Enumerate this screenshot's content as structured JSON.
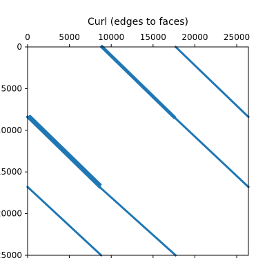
{
  "chart_data": {
    "type": "scatter",
    "title": "Curl (edges to faces)",
    "xlabel": "",
    "ylabel": "",
    "xlim": [
      0,
      26400
    ],
    "ylim": [
      25000,
      0
    ],
    "x_ticks": [
      0,
      5000,
      10000,
      15000,
      20000,
      25000
    ],
    "x_tick_labels": [
      "0",
      "5000",
      "10000",
      "15000",
      "20000",
      "25000"
    ],
    "y_ticks": [
      0,
      5000,
      10000,
      15000,
      20000,
      25000
    ],
    "y_tick_labels": [
      "0",
      "5000",
      "10000",
      "15000",
      "20000",
      "25000"
    ],
    "x_axis_position": "top",
    "grid": false,
    "marker_color": "#1f77b4",
    "series": [
      {
        "x": [
          8900,
          17500
        ],
        "y": [
          0,
          8400
        ],
        "width": 5
      },
      {
        "x": [
          17700,
          26400
        ],
        "y": [
          0,
          8400
        ],
        "width": 3
      },
      {
        "x": [
          0,
          8600
        ],
        "y": [
          8400,
          16800
        ],
        "width": 4
      },
      {
        "x": [
          8600,
          26400
        ],
        "y": [
          16800,
          16800
        ],
        "width": 0
      },
      {
        "x": [
          17500,
          26400
        ],
        "y": [
          8400,
          16800
        ],
        "width": 3
      },
      {
        "x": [
          300,
          8600
        ],
        "y": [
          8400,
          16500
        ],
        "width": 5
      },
      {
        "x": [
          0,
          8800
        ],
        "y": [
          16800,
          25000
        ],
        "width": 3
      },
      {
        "x": [
          8600,
          17700
        ],
        "y": [
          16800,
          25000
        ],
        "width": 3
      }
    ]
  }
}
